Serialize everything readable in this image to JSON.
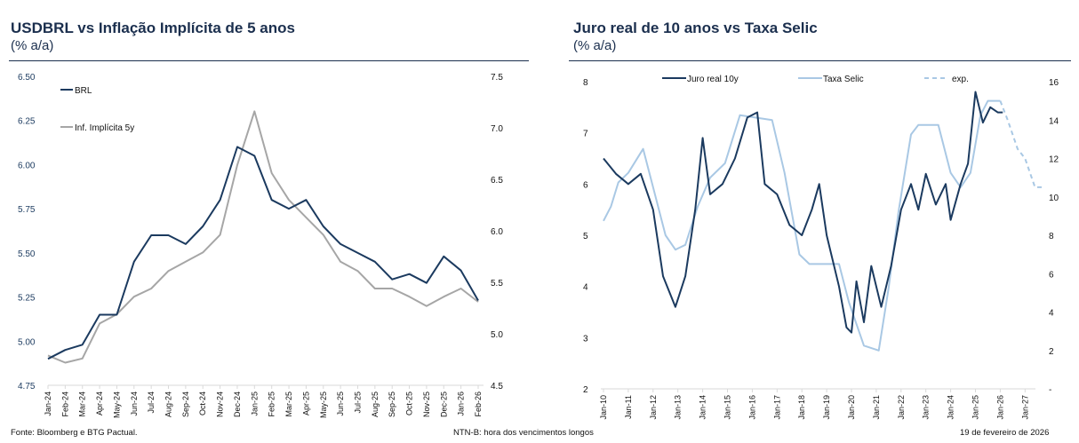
{
  "footer": {
    "source": "Fonte: Bloomberg e BTG Pactual.",
    "note": "NTN-B: hora dos vencimentos longos",
    "date": "19 de fevereiro de 2026"
  },
  "colors": {
    "navy": "#1b3a5f",
    "gray": "#a6a6a6",
    "light_blue": "#a9c8e4"
  },
  "chart_data": [
    {
      "type": "line",
      "title": "USDBRL vs Inflação Implícita de 5 anos",
      "subtitle": "(% a/a)",
      "ylim": [
        4.75,
        6.5
      ],
      "y2lim": [
        4.5,
        7.5
      ],
      "yticks": [
        "6.50",
        "6.25",
        "6.00",
        "5.75",
        "5.50",
        "5.25",
        "5.00",
        "4.75"
      ],
      "y2ticks": [
        "7.5",
        "7.0",
        "6.5",
        "6.0",
        "5.5",
        "5.0",
        "4.5"
      ],
      "categories": [
        "Jan-24",
        "Feb-24",
        "Mar-24",
        "Apr-24",
        "May-24",
        "Jun-24",
        "Jul-24",
        "Aug-24",
        "Sep-24",
        "Oct-24",
        "Nov-24",
        "Dec-24",
        "Jan-25",
        "Feb-25",
        "Mar-25",
        "Apr-25",
        "May-25",
        "Jun-25",
        "Jul-25",
        "Aug-25",
        "Sep-25",
        "Oct-25",
        "Nov-25",
        "Dec-25",
        "Jan-26",
        "Feb-26"
      ],
      "legend_position": "top-left",
      "series": [
        {
          "name": "BRL",
          "axis": "left",
          "values": [
            4.9,
            4.95,
            4.98,
            5.15,
            5.15,
            5.45,
            5.6,
            5.6,
            5.55,
            5.65,
            5.8,
            6.1,
            6.05,
            5.8,
            5.75,
            5.8,
            5.65,
            5.55,
            5.5,
            5.45,
            5.35,
            5.38,
            5.33,
            5.48,
            5.4,
            5.23
          ]
        },
        {
          "name": "Inf. Implícita 5y",
          "axis": "right",
          "values": [
            4.79,
            4.72,
            4.76,
            5.1,
            5.19,
            5.36,
            5.44,
            5.61,
            5.7,
            5.79,
            5.96,
            6.64,
            7.16,
            6.56,
            6.3,
            6.13,
            5.96,
            5.7,
            5.61,
            5.44,
            5.44,
            5.36,
            5.27,
            5.36,
            5.44,
            5.31
          ]
        }
      ]
    },
    {
      "type": "line",
      "title": "Juro real de 10 anos vs Taxa Selic",
      "subtitle": "(% a/a)",
      "ylim": [
        2,
        8
      ],
      "y2lim": [
        0,
        16
      ],
      "yticks": [
        "8",
        "7",
        "6",
        "5",
        "4",
        "3",
        "2"
      ],
      "y2ticks": [
        "16",
        "14",
        "12",
        "10",
        "8",
        "6",
        "4",
        "2",
        "-"
      ],
      "xticks": [
        "Jan-10",
        "Jan-11",
        "Jan-12",
        "Jan-13",
        "Jan-14",
        "Jan-15",
        "Jan-16",
        "Jan-17",
        "Jan-18",
        "Jan-19",
        "Jan-20",
        "Jan-21",
        "Jan-22",
        "Jan-23",
        "Jan-24",
        "Jan-25",
        "Jan-26",
        "Jan-27"
      ],
      "legend_position": "top",
      "series": [
        {
          "name": "Juro real 10y",
          "axis": "left",
          "x": [
            2010.0,
            2010.5,
            2011.0,
            2011.5,
            2012.0,
            2012.4,
            2012.9,
            2013.3,
            2013.7,
            2014.0,
            2014.3,
            2014.8,
            2015.3,
            2015.8,
            2016.2,
            2016.5,
            2017.0,
            2017.5,
            2018.0,
            2018.4,
            2018.7,
            2019.0,
            2019.5,
            2019.8,
            2020.0,
            2020.2,
            2020.5,
            2020.8,
            2021.2,
            2021.6,
            2022.0,
            2022.4,
            2022.7,
            2023.0,
            2023.4,
            2023.8,
            2024.0,
            2024.4,
            2024.7,
            2025.0,
            2025.3,
            2025.6,
            2025.9,
            2026.1
          ],
          "values": [
            6.5,
            6.2,
            6.0,
            6.2,
            5.5,
            4.2,
            3.6,
            4.2,
            5.5,
            6.9,
            5.8,
            6.0,
            6.5,
            7.3,
            7.4,
            6.0,
            5.8,
            5.2,
            5.0,
            5.5,
            6.0,
            5.0,
            4.0,
            3.2,
            3.1,
            4.1,
            3.3,
            4.4,
            3.6,
            4.4,
            5.5,
            6.0,
            5.5,
            6.2,
            5.6,
            6.0,
            5.3,
            6.0,
            6.4,
            7.8,
            7.2,
            7.5,
            7.4,
            7.4
          ]
        },
        {
          "name": "Taxa Selic",
          "axis": "right",
          "x": [
            2010.0,
            2010.3,
            2010.6,
            2011.0,
            2011.6,
            2012.0,
            2012.5,
            2012.9,
            2013.3,
            2013.8,
            2014.3,
            2014.9,
            2015.5,
            2016.8,
            2017.3,
            2017.9,
            2018.3,
            2019.5,
            2019.9,
            2020.5,
            2021.1,
            2021.5,
            2021.9,
            2022.4,
            2022.7,
            2023.5,
            2024.0,
            2024.4,
            2024.8,
            2025.2,
            2025.5,
            2026.0
          ],
          "values": [
            8.75,
            9.5,
            10.75,
            11.25,
            12.5,
            10.5,
            8.0,
            7.25,
            7.5,
            9.5,
            11.0,
            11.75,
            14.25,
            14.0,
            11.25,
            7.0,
            6.5,
            6.5,
            4.5,
            2.25,
            2.0,
            5.25,
            9.25,
            13.25,
            13.75,
            13.75,
            11.25,
            10.5,
            11.25,
            14.25,
            15.0,
            15.0
          ]
        },
        {
          "name": "exp.",
          "axis": "right",
          "dashed": true,
          "x": [
            2026.0,
            2026.3,
            2026.7,
            2027.0,
            2027.4,
            2027.8
          ],
          "values": [
            15.0,
            14.0,
            12.5,
            12.0,
            10.5,
            10.5
          ]
        }
      ]
    }
  ]
}
